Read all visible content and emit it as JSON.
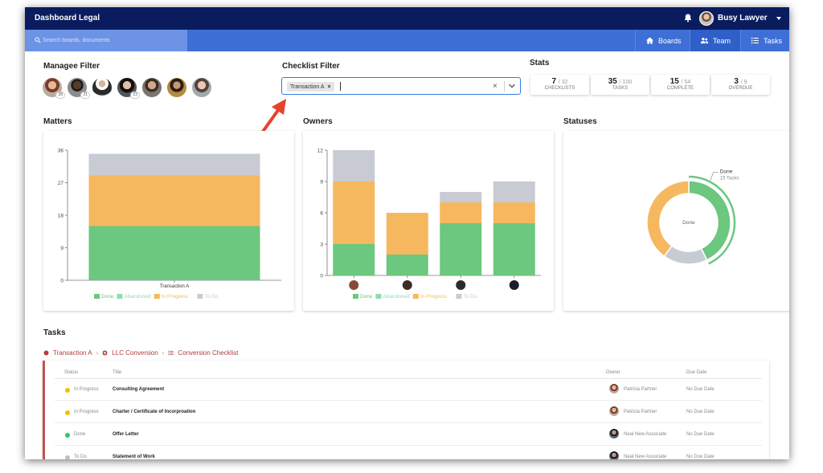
{
  "app": {
    "title": "Dashboard Legal",
    "user_name": "Busy Lawyer"
  },
  "search": {
    "placeholder": "Search boards, documents"
  },
  "nav": {
    "tabs": [
      {
        "label": "Boards",
        "icon": "home-icon"
      },
      {
        "label": "Team",
        "icon": "users-icon"
      },
      {
        "label": "Tasks",
        "icon": "list-icon"
      }
    ]
  },
  "manager_filter": {
    "title": "Managee Filter",
    "managers": [
      {
        "badge": "28"
      },
      {
        "badge": "21"
      },
      {
        "badge": ""
      },
      {
        "badge": "23"
      },
      {
        "badge": ""
      },
      {
        "badge": ""
      },
      {
        "badge": ""
      }
    ]
  },
  "checklist_filter": {
    "title": "Checklist Filter",
    "selected": "Transaction A"
  },
  "stats": {
    "title": "Stats",
    "cards": [
      {
        "value": "7",
        "total": "/ 32",
        "label": "CHECKLISTS"
      },
      {
        "value": "35",
        "total": "/ 100",
        "label": "TASKS"
      },
      {
        "value": "15",
        "total": "/ 54",
        "label": "COMPLETE"
      },
      {
        "value": "3",
        "total": "/ 9",
        "label": "OVERDUE"
      }
    ]
  },
  "colors": {
    "done": "#6cc77f",
    "abandoned": "#8fdcb0",
    "in_progress": "#f6b85f",
    "to_do": "#c8cbd3",
    "nav": "#3e6fd6",
    "topbar": "#0b1c5e"
  },
  "chart_data": [
    {
      "type": "bar",
      "title": "Matters",
      "categories": [
        "Transaction A"
      ],
      "stacked": true,
      "series": [
        {
          "name": "Done",
          "values": [
            15
          ]
        },
        {
          "name": "Abandoned",
          "values": [
            0
          ]
        },
        {
          "name": "In Progress",
          "values": [
            14
          ]
        },
        {
          "name": "To Do",
          "values": [
            6
          ]
        }
      ],
      "yticks": [
        "0",
        "9",
        "18",
        "27",
        "36"
      ],
      "ylim": [
        0,
        36
      ],
      "legend": "bottom"
    },
    {
      "type": "bar",
      "title": "Owners",
      "categories": [
        "",
        "",
        "",
        ""
      ],
      "stacked": true,
      "series": [
        {
          "name": "Done",
          "values": [
            3,
            2,
            5,
            5
          ]
        },
        {
          "name": "Abandoned",
          "values": [
            0,
            0,
            0,
            0
          ]
        },
        {
          "name": "In Progress",
          "values": [
            6,
            4,
            2,
            2
          ]
        },
        {
          "name": "To Do",
          "values": [
            3,
            0,
            1,
            2
          ]
        }
      ],
      "yticks": [
        "0",
        "3",
        "6",
        "9",
        "12"
      ],
      "ylim": [
        0,
        12
      ],
      "legend": "bottom"
    },
    {
      "type": "pie",
      "title": "Statuses",
      "center_label": "Done",
      "highlight_label": "Done",
      "highlight_sub": "15 Tasks",
      "slices": [
        {
          "name": "Done",
          "value": 15
        },
        {
          "name": "To Do",
          "value": 6
        },
        {
          "name": "In Progress",
          "value": 14
        }
      ]
    }
  ],
  "tasks": {
    "title": "Tasks",
    "breadcrumb": [
      "Transaction A",
      "LLC Conversion",
      "Conversion Checklist"
    ],
    "columns": {
      "status": "Status",
      "title": "Title",
      "owner": "Owner",
      "due": "Due Date"
    },
    "rows": [
      {
        "status": "In Progress",
        "status_color": "#f2c000",
        "title": "Consulting Agreement",
        "owner": "Patricia Partner",
        "due": "No Due Date"
      },
      {
        "status": "In Progress",
        "status_color": "#f2c000",
        "title": "Charter / Certificate of Incorproation",
        "owner": "Patricia Partner",
        "due": "No Due Date"
      },
      {
        "status": "Done",
        "status_color": "#35c46a",
        "title": "Offer Letter",
        "owner": "Neal New Associate",
        "due": "No Due Date"
      },
      {
        "status": "To Do",
        "status_color": "#c0c0c0",
        "title": "Statement of Work",
        "owner": "Neal New Associate",
        "due": "No Due Date"
      }
    ]
  }
}
